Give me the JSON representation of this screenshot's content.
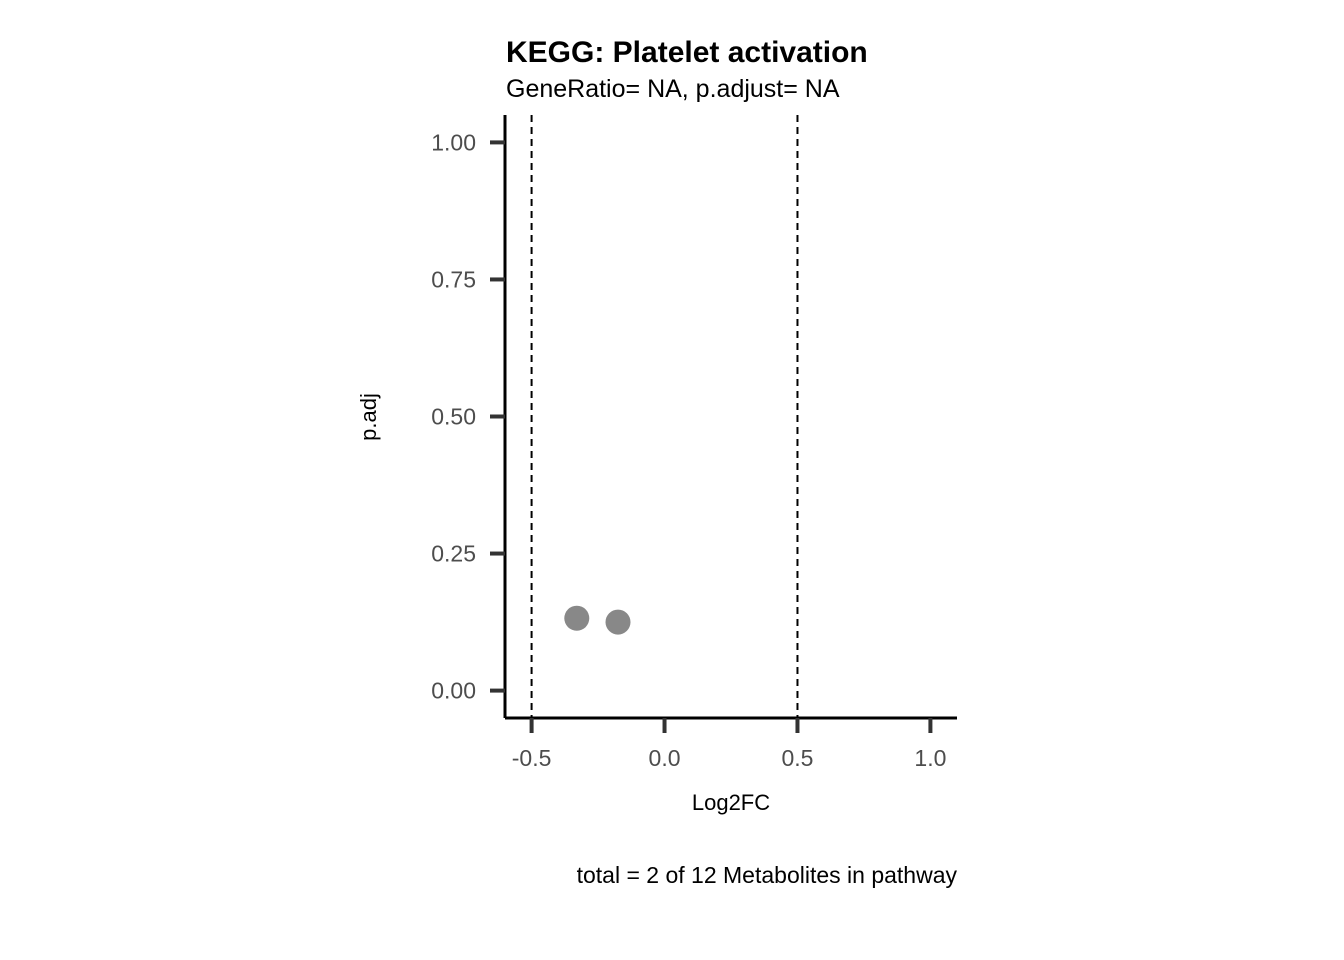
{
  "chart_data": {
    "type": "scatter",
    "title": "KEGG: Platelet activation",
    "subtitle": "GeneRatio= NA, p.adjust= NA",
    "xlabel": "Log2FC",
    "ylabel": "p.adj",
    "caption": "total = 2 of 12 Metabolites in pathway",
    "xlim": [
      -0.6,
      1.1
    ],
    "ylim": [
      -0.05,
      1.05
    ],
    "xticks": [
      -0.5,
      0.0,
      0.5,
      1.0
    ],
    "xtick_labels": [
      "-0.5",
      "0.0",
      "0.5",
      "1.0"
    ],
    "yticks": [
      0.0,
      0.25,
      0.5,
      0.75,
      1.0
    ],
    "ytick_labels": [
      "0.00",
      "0.25",
      "0.50",
      "0.75",
      "1.00"
    ],
    "vlines": [
      -0.5,
      0.5
    ],
    "vline_style": "dashed",
    "grid": false,
    "point_color": "#888888",
    "points": [
      {
        "x": -0.33,
        "y": 0.132
      },
      {
        "x": -0.175,
        "y": 0.125
      }
    ]
  }
}
